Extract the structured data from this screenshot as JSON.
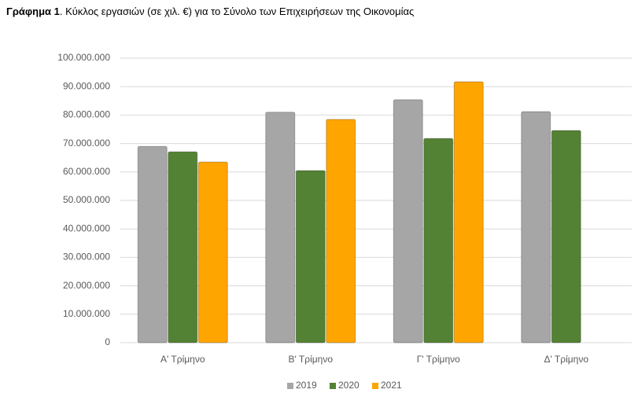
{
  "chart_data": {
    "type": "bar",
    "title_label": "Γράφημα 1",
    "title": ".  Κύκλος εργασιών (σε χιλ. €) για το Σύνολο των Επιχειρήσεων της Οικονομίας",
    "categories": [
      "Α' Τρίμηνο",
      "Β' Τρίμηνο",
      "Γ' Τρίμηνο",
      "Δ' Τρίμηνο"
    ],
    "series": [
      {
        "name": "2019",
        "color": "#a6a6a6",
        "values": [
          69000000,
          81000000,
          85400000,
          81200000
        ]
      },
      {
        "name": "2020",
        "color": "#548235",
        "values": [
          67100000,
          60500000,
          71800000,
          74600000
        ]
      },
      {
        "name": "2021",
        "color": "#ffa500",
        "values": [
          63500000,
          78500000,
          91700000,
          null
        ]
      }
    ],
    "ylim": [
      0,
      100000000
    ],
    "yticks": [
      0,
      {
        "value": 10000000,
        "label": "10.000.000"
      },
      {
        "value": 20000000,
        "label": "20.000.000"
      },
      {
        "value": 30000000,
        "label": "30.000.000"
      },
      {
        "value": 40000000,
        "label": "40.000.000"
      },
      {
        "value": 50000000,
        "label": "50.000.000"
      },
      {
        "value": 60000000,
        "label": "60.000.000"
      },
      {
        "value": 70000000,
        "label": "70.000.000"
      },
      {
        "value": 80000000,
        "label": "80.000.000"
      },
      {
        "value": 90000000,
        "label": "90.000.000"
      },
      {
        "value": 100000000,
        "label": "100.000.000"
      }
    ],
    "grid": true,
    "legend": "bottom"
  }
}
